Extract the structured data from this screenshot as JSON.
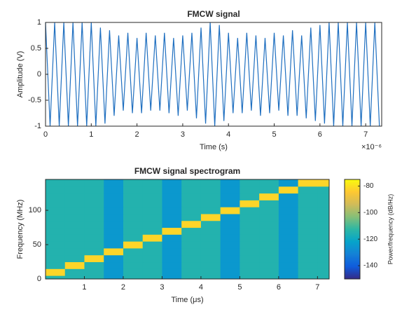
{
  "chart_data": [
    {
      "type": "line",
      "title": "FMCW signal",
      "x_label": "Time (s)",
      "y_label": "Amplitude (V)",
      "x_exponent_label": "×10⁻⁶",
      "color": "#1f6fc0",
      "xlim": [
        0,
        7.35
      ],
      "ylim": [
        -1,
        1
      ],
      "xticks": [
        0,
        1,
        2,
        3,
        4,
        5,
        6,
        7
      ],
      "yticks": [
        -1,
        -0.5,
        0,
        0.5,
        1
      ],
      "x": [
        0,
        0.1,
        0.2,
        0.3,
        0.4,
        0.5,
        0.6,
        0.7,
        0.8,
        0.9,
        1,
        1.1,
        1.2,
        1.3,
        1.4,
        1.5,
        1.6,
        1.7,
        1.8,
        1.9,
        2,
        2.1,
        2.2,
        2.3,
        2.4,
        2.5,
        2.6,
        2.7,
        2.8,
        2.9,
        3,
        3.1,
        3.2,
        3.3,
        3.4,
        3.5,
        3.6,
        3.7,
        3.8,
        3.9,
        4,
        4.1,
        4.2,
        4.3,
        4.4,
        4.5,
        4.6,
        4.7,
        4.8,
        4.9,
        5,
        5.1,
        5.2,
        5.3,
        5.4,
        5.5,
        5.6,
        5.7,
        5.8,
        5.9,
        6,
        6.1,
        6.2,
        6.3,
        6.4,
        6.5,
        6.6,
        6.7,
        6.8,
        6.9,
        7,
        7.1,
        7.2,
        7.3
      ],
      "values": [
        1,
        -1,
        1,
        -1,
        1,
        -1,
        1,
        -1,
        1,
        -1,
        1,
        -1,
        0.9,
        -0.95,
        0.85,
        -0.8,
        0.75,
        -0.7,
        0.8,
        -0.75,
        0.7,
        -0.75,
        0.8,
        -0.7,
        0.75,
        -0.7,
        0.8,
        -0.75,
        0.7,
        -0.8,
        0.75,
        -0.7,
        0.8,
        -0.85,
        0.9,
        -0.95,
        1,
        -1,
        0.95,
        -0.9,
        0.8,
        -0.75,
        0.7,
        -0.75,
        0.8,
        -0.7,
        0.75,
        -0.8,
        0.7,
        -0.75,
        0.8,
        -0.7,
        0.75,
        -0.8,
        0.85,
        -0.8,
        0.75,
        -0.85,
        0.9,
        -0.9,
        0.95,
        -0.95,
        1,
        -1,
        1,
        -1,
        1,
        -1,
        1,
        -1,
        1,
        -1,
        1,
        -1
      ]
    },
    {
      "type": "heatmap",
      "title": "FMCW signal spectrogram",
      "x_label": "Time (μs)",
      "y_label": "Frequency (MHz)",
      "colorbar_label": "Power/frequency (dB/Hz)",
      "xlim": [
        0,
        7.3
      ],
      "ylim": [
        0,
        145
      ],
      "xticks": [
        1,
        2,
        3,
        4,
        5,
        6,
        7
      ],
      "yticks": [
        0,
        50,
        100
      ],
      "clim": [
        -150,
        -75
      ],
      "cticks": [
        -140,
        -120,
        -100,
        -80
      ],
      "colormap": [
        "#352a87",
        "#0f5cdd",
        "#1481d6",
        "#06a4ca",
        "#2eb7a4",
        "#87bf77",
        "#d1bb59",
        "#fec832",
        "#f9fb0e"
      ],
      "x": [
        0.25,
        0.75,
        1.25,
        1.75,
        2.25,
        2.75,
        3.25,
        3.75,
        4.25,
        4.75,
        5.25,
        5.75,
        6.25,
        6.75,
        7.25
      ],
      "y": [
        0,
        10,
        20,
        30,
        40,
        50,
        60,
        70,
        80,
        90,
        100,
        110,
        120,
        130,
        140
      ],
      "values": [
        [
          -115,
          -115,
          -115,
          -125,
          -115,
          -115,
          -125,
          -115,
          -115,
          -125,
          -115,
          -115,
          -125,
          -115,
          -115
        ],
        [
          -82,
          -115,
          -115,
          -125,
          -115,
          -115,
          -125,
          -115,
          -115,
          -125,
          -115,
          -115,
          -125,
          -115,
          -115
        ],
        [
          -115,
          -82,
          -115,
          -125,
          -115,
          -115,
          -125,
          -115,
          -115,
          -125,
          -115,
          -115,
          -125,
          -115,
          -115
        ],
        [
          -115,
          -115,
          -82,
          -125,
          -115,
          -115,
          -125,
          -115,
          -115,
          -125,
          -115,
          -115,
          -125,
          -115,
          -115
        ],
        [
          -115,
          -115,
          -115,
          -82,
          -115,
          -115,
          -125,
          -115,
          -115,
          -125,
          -115,
          -115,
          -125,
          -115,
          -115
        ],
        [
          -115,
          -115,
          -115,
          -125,
          -82,
          -115,
          -125,
          -115,
          -115,
          -125,
          -115,
          -115,
          -125,
          -115,
          -115
        ],
        [
          -115,
          -115,
          -115,
          -125,
          -115,
          -82,
          -125,
          -115,
          -115,
          -125,
          -115,
          -115,
          -125,
          -115,
          -115
        ],
        [
          -115,
          -115,
          -115,
          -125,
          -115,
          -115,
          -82,
          -115,
          -115,
          -125,
          -115,
          -115,
          -125,
          -115,
          -115
        ],
        [
          -115,
          -115,
          -115,
          -125,
          -115,
          -115,
          -125,
          -82,
          -115,
          -125,
          -115,
          -115,
          -125,
          -115,
          -115
        ],
        [
          -115,
          -115,
          -115,
          -125,
          -115,
          -115,
          -125,
          -115,
          -82,
          -125,
          -115,
          -115,
          -125,
          -115,
          -115
        ],
        [
          -115,
          -115,
          -115,
          -125,
          -115,
          -115,
          -125,
          -115,
          -115,
          -82,
          -115,
          -115,
          -125,
          -115,
          -115
        ],
        [
          -115,
          -115,
          -115,
          -125,
          -115,
          -115,
          -125,
          -115,
          -115,
          -125,
          -82,
          -115,
          -125,
          -115,
          -115
        ],
        [
          -115,
          -115,
          -115,
          -125,
          -115,
          -115,
          -125,
          -115,
          -115,
          -125,
          -115,
          -82,
          -125,
          -115,
          -115
        ],
        [
          -115,
          -115,
          -115,
          -125,
          -115,
          -115,
          -125,
          -115,
          -115,
          -125,
          -115,
          -115,
          -82,
          -115,
          -115
        ],
        [
          -115,
          -115,
          -115,
          -125,
          -115,
          -115,
          -125,
          -115,
          -115,
          -125,
          -115,
          -115,
          -125,
          -82,
          -82
        ]
      ]
    }
  ]
}
